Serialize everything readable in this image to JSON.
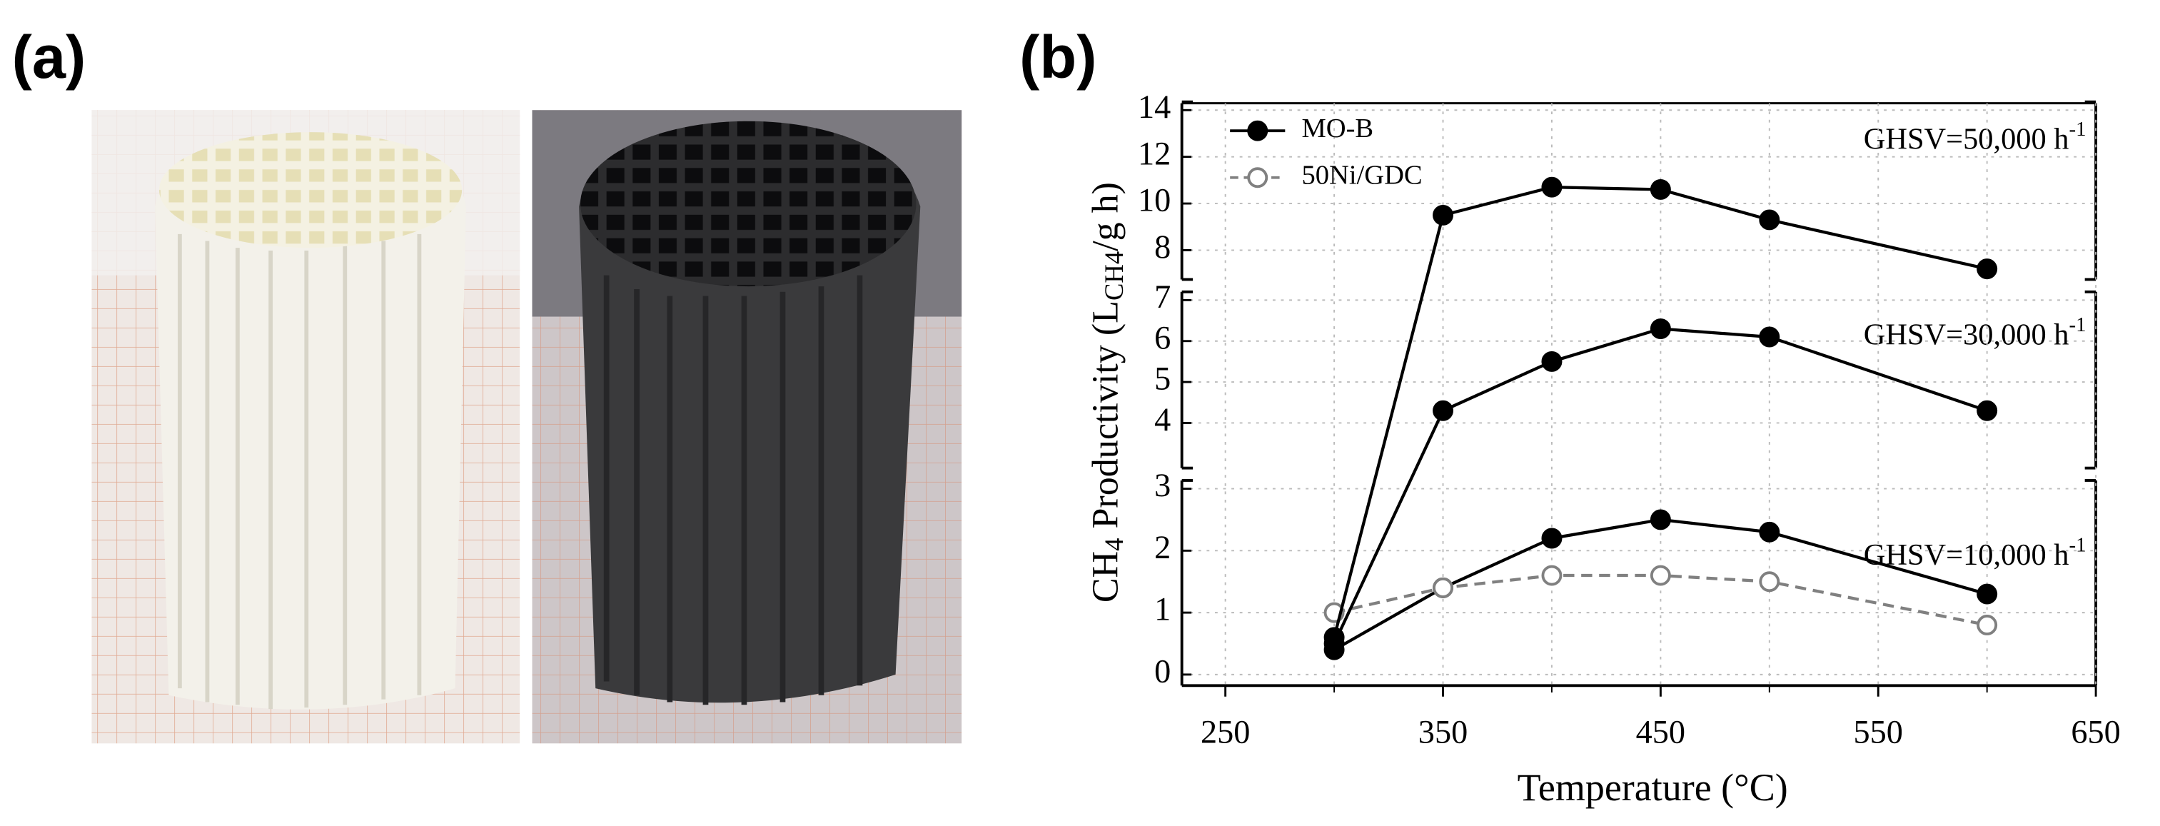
{
  "panel_a_label": "(a)",
  "chart_data": {
    "type": "line",
    "panel_label": "(b)",
    "x_label": "Temperature (°C)",
    "y_label": [
      "CH",
      "4",
      " Productivity (L",
      "CH4",
      "/g h)"
    ],
    "x": [
      300,
      350,
      400,
      450,
      500,
      600
    ],
    "xlim": [
      230,
      650
    ],
    "xticks": [
      250,
      350,
      450,
      550,
      650
    ],
    "grid": true,
    "panels": [
      {
        "ylim": [
          0,
          3
        ],
        "yticks": [
          0,
          1,
          2,
          3
        ],
        "annotation": [
          "GHSV=10,000 h",
          "-1"
        ]
      },
      {
        "ylim": [
          3.1,
          7
        ],
        "yticks": [
          4,
          5,
          6,
          7
        ],
        "annotation": [
          "GHSV=30,000 h",
          "-1"
        ]
      },
      {
        "ylim": [
          7.1,
          14
        ],
        "yticks": [
          8,
          10,
          12,
          14
        ],
        "annotation": [
          "GHSV=50,000 h",
          "-1"
        ]
      }
    ],
    "series": [
      {
        "name": "MO-B",
        "color": "#000000",
        "values": [
          0.4,
          1.4,
          2.2,
          2.5,
          2.3,
          1.3
        ]
      },
      {
        "name": "50Ni/GDC",
        "color": "#808080",
        "dashed": true,
        "values": [
          1.0,
          1.4,
          1.6,
          1.6,
          1.5,
          0.8
        ]
      },
      {
        "color": "#000000",
        "values": [
          0.5,
          4.3,
          5.5,
          6.3,
          6.1,
          4.3
        ]
      },
      {
        "color": "#000000",
        "values": [
          0.6,
          9.5,
          10.7,
          10.6,
          9.3,
          7.2
        ]
      }
    ]
  }
}
